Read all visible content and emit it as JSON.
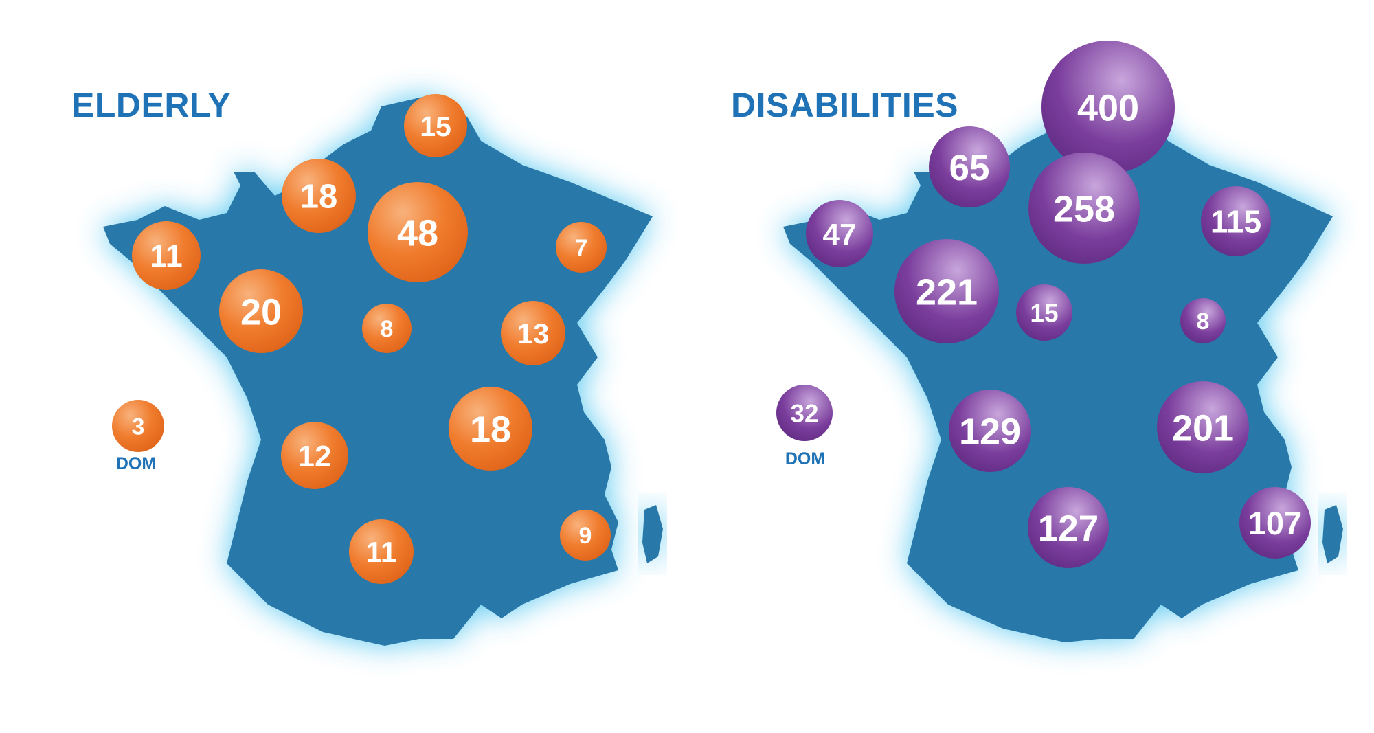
{
  "colors": {
    "land": "#2878aa",
    "glow": "#3cc0ee",
    "title": "#1f72b5",
    "dom_label": "#1f72b5",
    "elderly_bubble": "#f07c2e",
    "elderly_bubble_light": "#f8b27c",
    "disabilities_bubble": "#7a3d9c",
    "disabilities_bubble_light": "#c8a6dc",
    "bubble_text": "#ffffff"
  },
  "maps": [
    {
      "id": "elderly",
      "title": "ELDERLY",
      "bubble_color": "elderly",
      "bubbles": [
        {
          "id": "nord",
          "value": 15
        },
        {
          "id": "normandie",
          "value": 18
        },
        {
          "id": "ile-de-france",
          "value": 48
        },
        {
          "id": "grand-est",
          "value": 7
        },
        {
          "id": "bretagne",
          "value": 11
        },
        {
          "id": "pays-de-la-loire",
          "value": 20
        },
        {
          "id": "centre",
          "value": 8
        },
        {
          "id": "bourgogne-franche-comte",
          "value": 13
        },
        {
          "id": "auvergne-rhone-alpes",
          "value": 18
        },
        {
          "id": "nouvelle-aquitaine",
          "value": 12
        },
        {
          "id": "occitanie",
          "value": 11
        },
        {
          "id": "paca",
          "value": 9
        },
        {
          "id": "dom",
          "value": 3
        }
      ],
      "dom_label": "DOM"
    },
    {
      "id": "disabilities",
      "title": "DISABILITIES",
      "bubble_color": "disabilities",
      "bubbles": [
        {
          "id": "nord",
          "value": 400
        },
        {
          "id": "normandie",
          "value": 65
        },
        {
          "id": "ile-de-france",
          "value": 258
        },
        {
          "id": "grand-est",
          "value": 115
        },
        {
          "id": "bretagne",
          "value": 47
        },
        {
          "id": "pays-de-la-loire",
          "value": 221
        },
        {
          "id": "centre",
          "value": 15
        },
        {
          "id": "bourgogne-franche-comte",
          "value": 8
        },
        {
          "id": "nouvelle-aquitaine",
          "value": 129
        },
        {
          "id": "auvergne-rhone-alpes",
          "value": 201
        },
        {
          "id": "occitanie",
          "value": 127
        },
        {
          "id": "paca",
          "value": 107
        },
        {
          "id": "dom",
          "value": 32
        }
      ],
      "dom_label": "DOM"
    }
  ]
}
